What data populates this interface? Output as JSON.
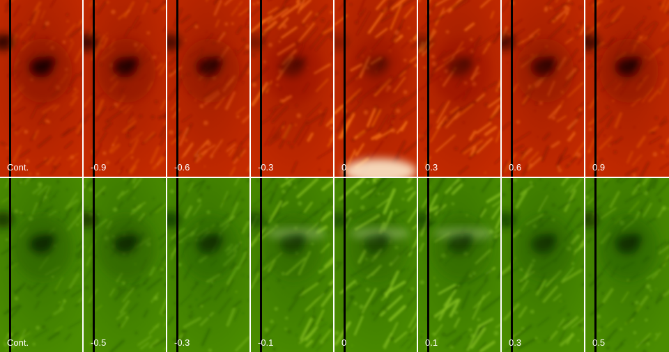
{
  "rows": [
    {
      "name": "red",
      "palette": {
        "dark": "#1a0000",
        "mid": "#8a1400",
        "base": "#c42a00",
        "bright": "#f06a10",
        "white": "#fff4d8"
      },
      "panels": [
        {
          "label": "Cont.",
          "umbra": 0.95,
          "bright": 0.05
        },
        {
          "label": "-0.9",
          "umbra": 0.9,
          "bright": 0.15
        },
        {
          "label": "-0.6",
          "umbra": 0.8,
          "bright": 0.35
        },
        {
          "label": "-0.3",
          "umbra": 0.45,
          "bright": 0.8
        },
        {
          "label": "0",
          "umbra": 0.35,
          "bright": 1.0
        },
        {
          "label": "0.3",
          "umbra": 0.45,
          "bright": 0.8
        },
        {
          "label": "0.6",
          "umbra": 0.75,
          "bright": 0.45
        },
        {
          "label": "0.9",
          "umbra": 0.88,
          "bright": 0.2
        }
      ]
    },
    {
      "name": "green",
      "palette": {
        "dark": "#0a2400",
        "mid": "#2a6000",
        "base": "#4a8c00",
        "bright": "#86c020",
        "white": "#eaffc8"
      },
      "panels": [
        {
          "label": "Cont.",
          "umbra": 0.9,
          "bright": 0.1
        },
        {
          "label": "-0.5",
          "umbra": 0.85,
          "bright": 0.2
        },
        {
          "label": "-0.3",
          "umbra": 0.75,
          "bright": 0.35
        },
        {
          "label": "-0.1",
          "umbra": 0.6,
          "bright": 0.75
        },
        {
          "label": "0",
          "umbra": 0.55,
          "bright": 0.95
        },
        {
          "label": "0.1",
          "umbra": 0.6,
          "bright": 0.85
        },
        {
          "label": "0.3",
          "umbra": 0.7,
          "bright": 0.55
        },
        {
          "label": "0.5",
          "umbra": 0.8,
          "bright": 0.3
        }
      ]
    }
  ]
}
